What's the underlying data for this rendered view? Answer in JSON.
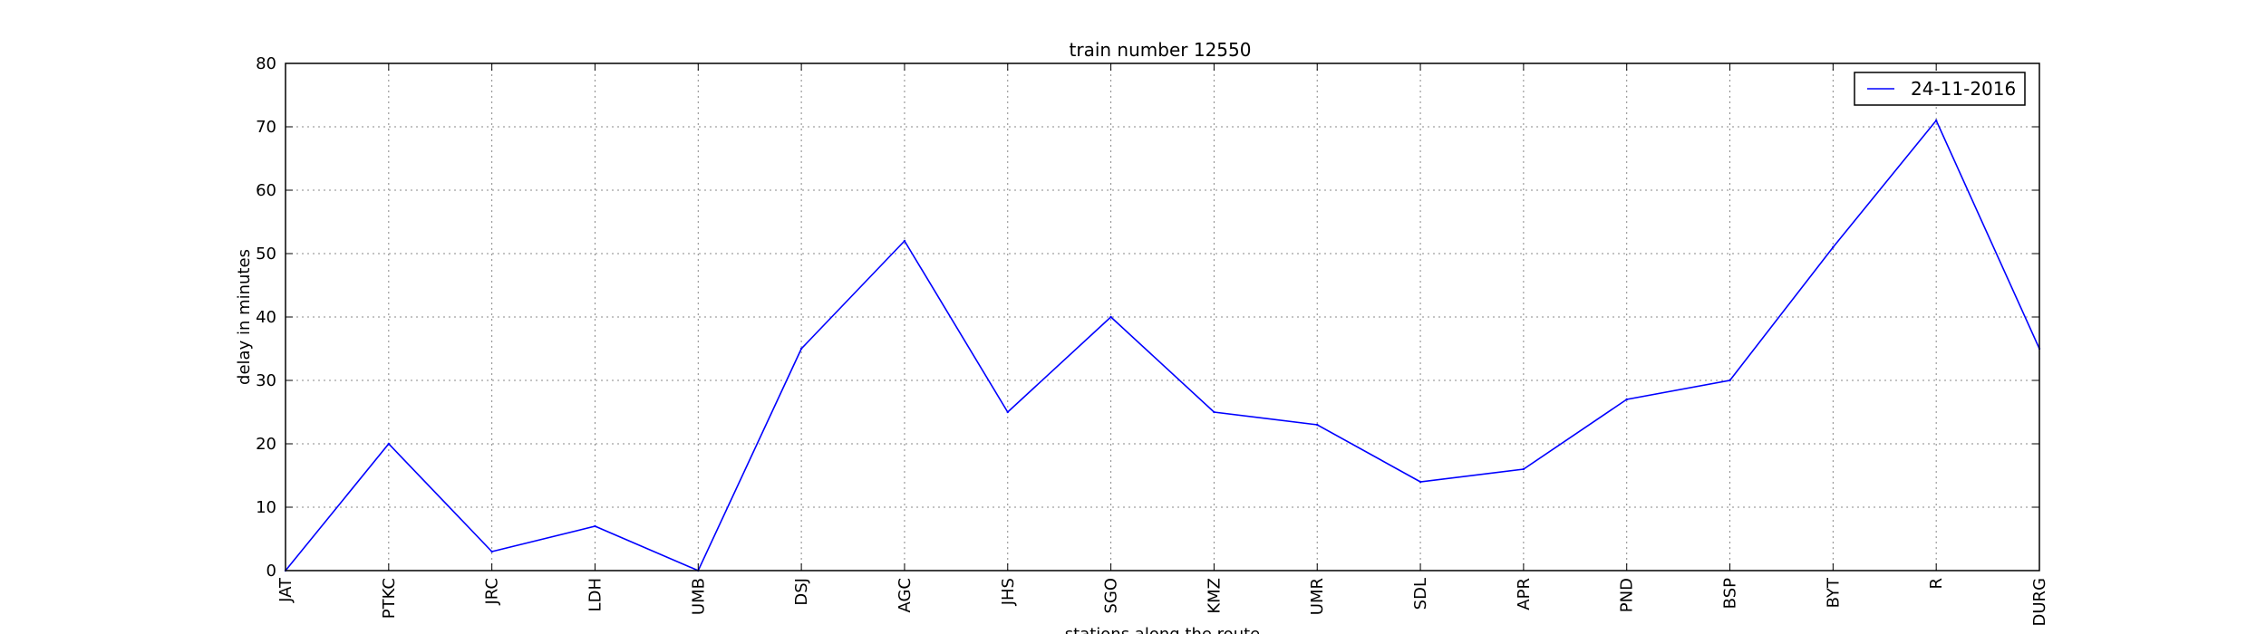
{
  "chart_data": {
    "type": "line",
    "title": "train number 12550",
    "xlabel": "stations along the route",
    "ylabel": "delay in minutes",
    "categories": [
      "JAT",
      "PTKC",
      "JRC",
      "LDH",
      "UMB",
      "DSJ",
      "AGC",
      "JHS",
      "SGO",
      "KMZ",
      "UMR",
      "SDL",
      "APR",
      "PND",
      "BSP",
      "BYT",
      "R",
      "DURG"
    ],
    "series": [
      {
        "name": "24-11-2016",
        "color": "#0000ff",
        "values": [
          0,
          20,
          3,
          7,
          0,
          35,
          52,
          25,
          40,
          25,
          23,
          14,
          16,
          27,
          30,
          51,
          71,
          35
        ]
      }
    ],
    "ylim": [
      0,
      80
    ],
    "yticks": [
      0,
      10,
      20,
      30,
      40,
      50,
      60,
      70,
      80
    ],
    "grid": true,
    "legend_position": "top-right"
  }
}
